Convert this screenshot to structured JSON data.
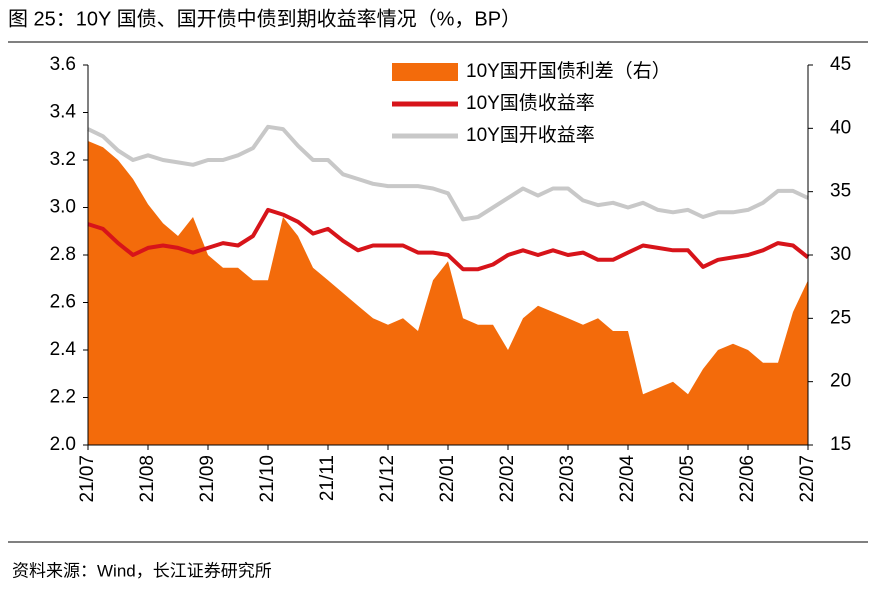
{
  "chart_data": {
    "type": "line",
    "title": "图 25：10Y 国债、国开债中债到期收益率情况（%，BP）",
    "source": "资料来源：Wind，长江证券研究所",
    "categories": [
      "21/07",
      null,
      null,
      null,
      "21/08",
      null,
      null,
      null,
      "21/09",
      null,
      null,
      null,
      "21/10",
      null,
      null,
      null,
      "21/11",
      null,
      null,
      null,
      "21/12",
      null,
      null,
      null,
      "22/01",
      null,
      null,
      null,
      "22/02",
      null,
      null,
      null,
      "22/03",
      null,
      null,
      null,
      "22/04",
      null,
      null,
      null,
      "22/05",
      null,
      null,
      null,
      "22/06",
      null,
      null,
      null,
      "22/07"
    ],
    "series": [
      {
        "name": "10Y国开国债利差（右）",
        "type": "area",
        "axis": "y2",
        "color": "#f36b0b",
        "values": [
          39,
          38.5,
          37.5,
          36,
          34,
          32.5,
          31.5,
          33,
          30,
          29,
          29,
          28,
          28,
          33,
          31.5,
          29,
          28,
          27,
          26,
          25,
          24.5,
          25,
          24,
          28,
          29.5,
          25,
          24.5,
          24.5,
          22.5,
          25,
          26,
          25.5,
          25,
          24.5,
          25,
          24,
          24,
          19,
          19.5,
          20,
          19,
          21,
          22.5,
          23,
          22.5,
          21.5,
          21.5,
          25.5,
          28
        ]
      },
      {
        "name": "10Y国债收益率",
        "type": "line",
        "color": "#d7141a",
        "values": [
          2.93,
          2.91,
          2.85,
          2.8,
          2.83,
          2.84,
          2.83,
          2.81,
          2.83,
          2.85,
          2.84,
          2.88,
          2.99,
          2.97,
          2.94,
          2.89,
          2.91,
          2.86,
          2.82,
          2.84,
          2.84,
          2.84,
          2.81,
          2.81,
          2.8,
          2.74,
          2.74,
          2.76,
          2.8,
          2.82,
          2.8,
          2.82,
          2.8,
          2.81,
          2.78,
          2.78,
          2.81,
          2.84,
          2.83,
          2.82,
          2.82,
          2.75,
          2.78,
          2.79,
          2.8,
          2.82,
          2.85,
          2.84,
          2.79
        ]
      },
      {
        "name": "10Y国开收益率",
        "type": "line",
        "color": "#c8c8c8",
        "values": [
          3.33,
          3.3,
          3.24,
          3.2,
          3.22,
          3.2,
          3.19,
          3.18,
          3.2,
          3.2,
          3.22,
          3.25,
          3.34,
          3.33,
          3.26,
          3.2,
          3.2,
          3.14,
          3.12,
          3.1,
          3.09,
          3.09,
          3.09,
          3.08,
          3.06,
          2.95,
          2.96,
          3.0,
          3.04,
          3.08,
          3.05,
          3.08,
          3.08,
          3.03,
          3.01,
          3.02,
          3.0,
          3.02,
          2.99,
          2.98,
          2.99,
          2.96,
          2.98,
          2.98,
          2.99,
          3.02,
          3.07,
          3.07,
          3.04
        ]
      }
    ],
    "ylim": [
      2.0,
      3.6
    ],
    "yticks": [
      {
        "value": 2.0,
        "label": "2.0"
      },
      2.2,
      2.4,
      2.6,
      2.8,
      {
        "value": 3.0,
        "label": "3.0"
      },
      3.2,
      3.4,
      3.6
    ],
    "y2lim": [
      15,
      45
    ],
    "y2ticks": [
      15,
      20,
      25,
      30,
      35,
      40,
      45
    ],
    "legend": "upper right"
  }
}
